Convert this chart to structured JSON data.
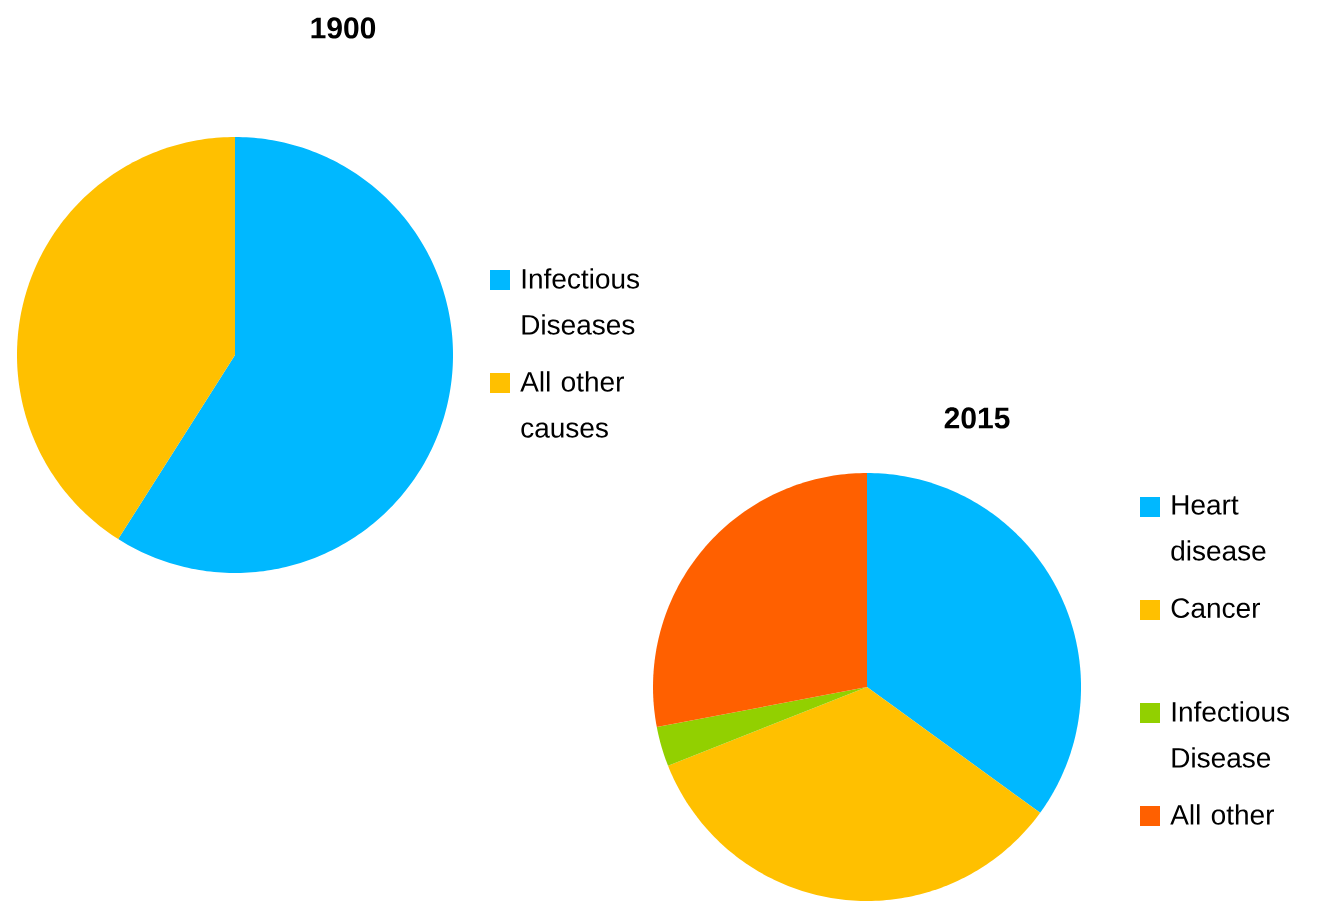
{
  "chart_data": [
    {
      "type": "pie",
      "title": "1900",
      "categories": [
        "Infectious Diseases",
        "All other causes"
      ],
      "values": [
        59,
        41
      ],
      "colors": [
        "#00b8ff",
        "#ffc000"
      ],
      "legend": "right"
    },
    {
      "type": "pie",
      "title": "2015",
      "categories": [
        "Heart disease",
        "Cancer",
        "Infectious Disease",
        "All other"
      ],
      "values": [
        35,
        34,
        3,
        28
      ],
      "colors": [
        "#00b8ff",
        "#ffc000",
        "#92d000",
        "#ff6000"
      ],
      "legend": "right"
    }
  ]
}
